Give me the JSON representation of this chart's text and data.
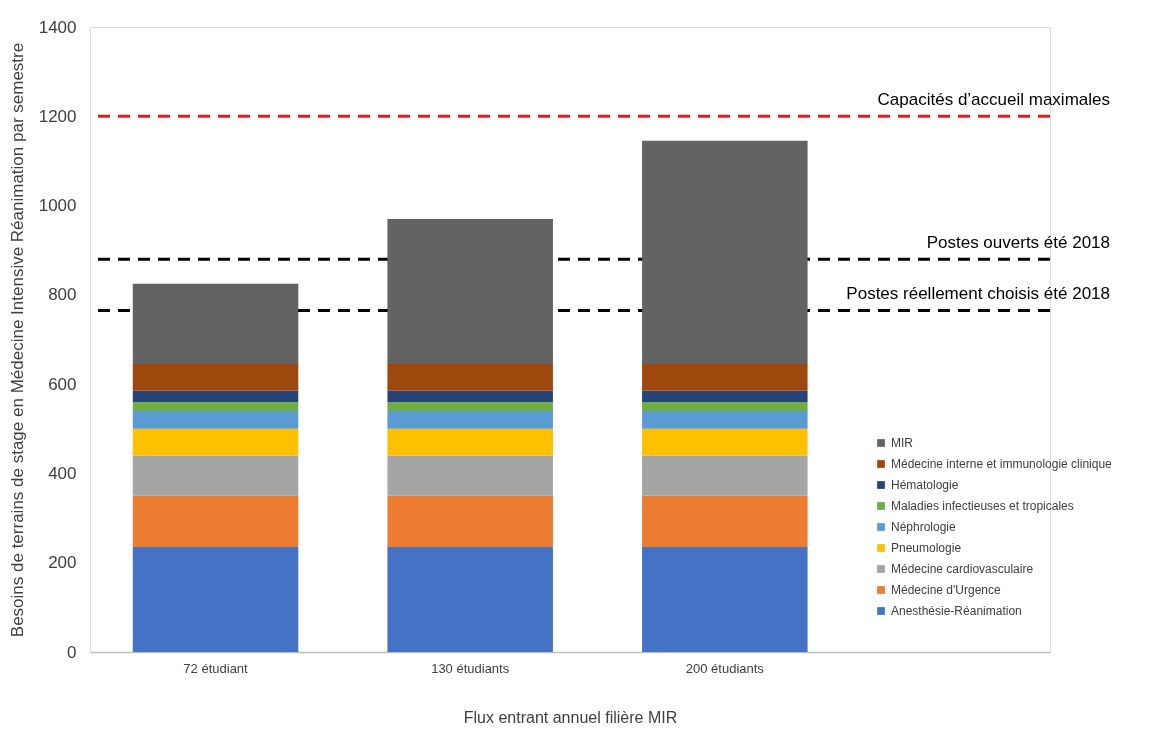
{
  "chart_data": {
    "type": "bar",
    "stacked": true,
    "xlabel": "Flux entrant annuel filière MIR",
    "ylabel": "Besoins de terrains de stage en Médecine Intensive Réanimation par semestre",
    "categories": [
      "72 étudiant",
      "130 étudiants",
      "200 étudiants"
    ],
    "series": [
      {
        "name": "Anesthésie-Réanimation",
        "color": "#4472c4",
        "values": [
          235,
          235,
          235
        ]
      },
      {
        "name": "Médecine d'Urgence",
        "color": "#ed7d31",
        "values": [
          115,
          115,
          115
        ]
      },
      {
        "name": "Médecine cardiovasculaire",
        "color": "#a5a5a5",
        "values": [
          90,
          90,
          90
        ]
      },
      {
        "name": "Pneumologie",
        "color": "#ffc000",
        "values": [
          60,
          60,
          60
        ]
      },
      {
        "name": "Néphrologie",
        "color": "#5b9bd5",
        "values": [
          40,
          40,
          40
        ]
      },
      {
        "name": "Maladies infectieuses et tropicales",
        "color": "#70ad47",
        "values": [
          20,
          20,
          20
        ]
      },
      {
        "name": "Hématologie",
        "color": "#264478",
        "values": [
          25,
          25,
          25
        ]
      },
      {
        "name": "Médecine interne et immunologie clinique",
        "color": "#9e480e",
        "values": [
          60,
          60,
          60
        ]
      },
      {
        "name": "MIR",
        "color": "#636363",
        "values": [
          180,
          325,
          500
        ]
      }
    ],
    "ylim": [
      0,
      1400
    ],
    "yticks": [
      0,
      200,
      400,
      600,
      800,
      1000,
      1200,
      1400
    ],
    "ref_lines": [
      {
        "axis": "y",
        "value": 1200,
        "label": "Capacités d’accueil maximales",
        "color": "#e02020",
        "line_style": "dashed"
      },
      {
        "axis": "y",
        "value": 880,
        "label": "Postes ouverts été 2018",
        "color": "#000000",
        "line_style": "dashed"
      },
      {
        "axis": "y",
        "value": 765,
        "label": "Postes réellement choisis été 2018",
        "color": "#000000",
        "line_style": "dashed"
      }
    ],
    "grid": false,
    "legend": "right"
  }
}
